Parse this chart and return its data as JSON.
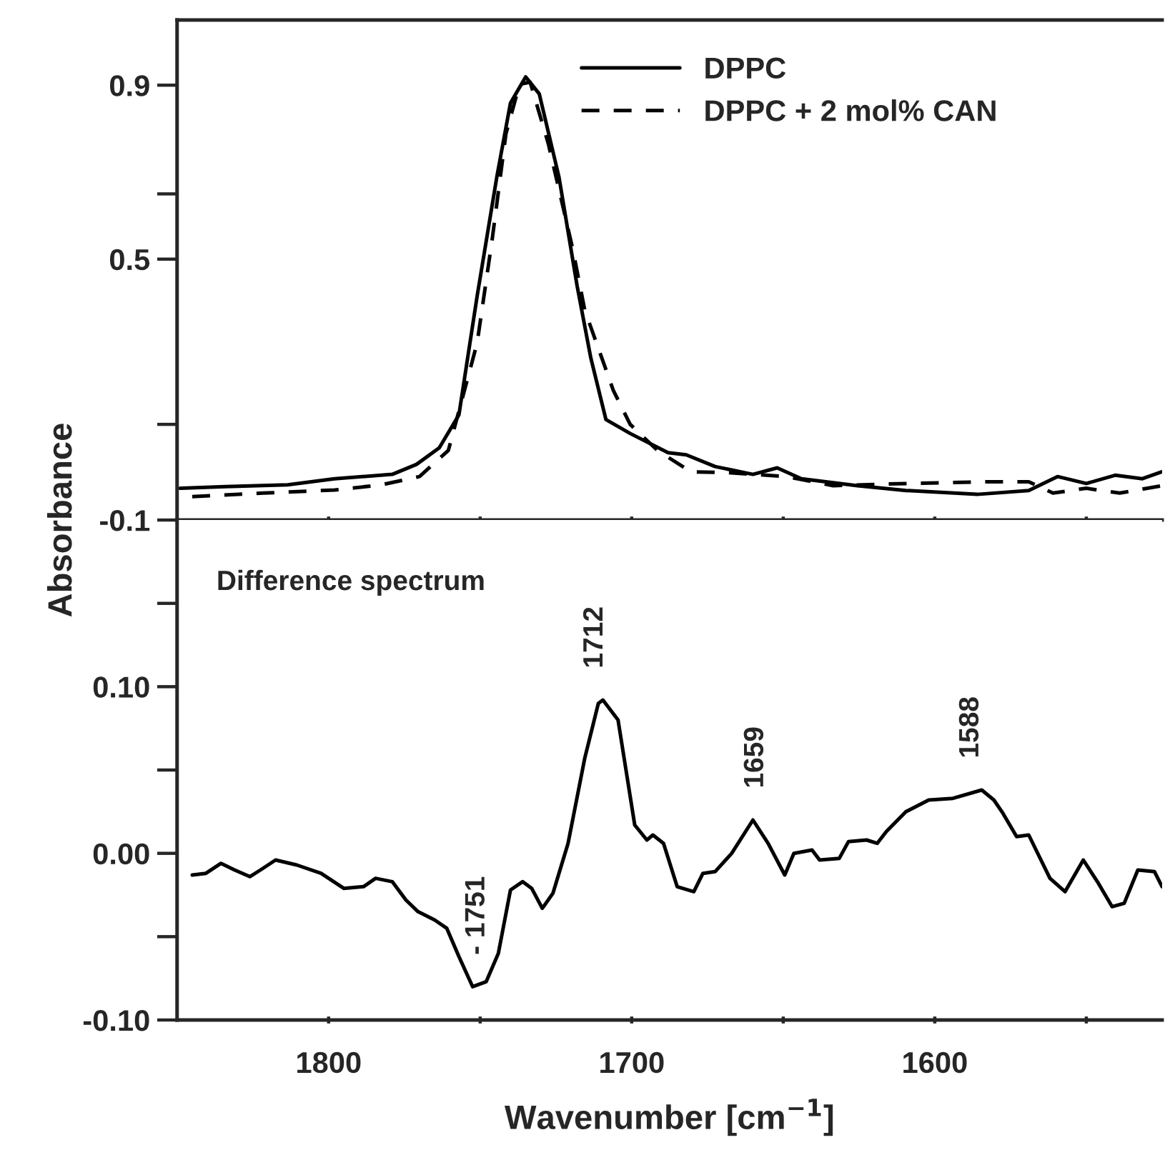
{
  "chart_data": [
    {
      "type": "line",
      "ylabel": "Absorbance",
      "xlim": [
        1850,
        1525
      ],
      "ylim": [
        -0.1,
        1.05
      ],
      "xticks": [
        {
          "value": 1800,
          "label": null
        },
        {
          "value": 1750,
          "label": null
        },
        {
          "value": 1700,
          "label": null
        },
        {
          "value": 1650,
          "label": null
        },
        {
          "value": 1600,
          "label": null
        },
        {
          "value": 1550,
          "label": null
        }
      ],
      "yticks": [
        -0.1,
        {
          "value": 0.12,
          "label": null
        },
        0.5,
        {
          "value": 0.65,
          "label": null
        },
        0.9
      ],
      "tick_labels": "y",
      "grid": false,
      "legend": "top right",
      "marker": "none",
      "series": [
        {
          "name": "DPPC",
          "color": "#000000",
          "line_style": "solid",
          "x": [
            1849,
            1834,
            1813.5,
            1798,
            1779,
            1771,
            1763.5,
            1757,
            1751,
            1744.5,
            1740,
            1735,
            1730.5,
            1724,
            1718,
            1713.5,
            1708.5,
            1700.5,
            1688,
            1682,
            1672.5,
            1660,
            1652,
            1644,
            1625.5,
            1609.5,
            1586,
            1569,
            1559.5,
            1550,
            1540.5,
            1531.5,
            1525
          ],
          "values": [
            -0.027,
            -0.023,
            -0.019,
            -0.005,
            0.005,
            0.028,
            0.066,
            0.142,
            0.415,
            0.689,
            0.859,
            0.919,
            0.88,
            0.689,
            0.438,
            0.273,
            0.131,
            0.099,
            0.055,
            0.05,
            0.023,
            0.005,
            0.02,
            -0.005,
            -0.021,
            -0.032,
            -0.041,
            -0.032,
            0.0,
            -0.016,
            0.003,
            -0.005,
            0.011
          ]
        },
        {
          "name": "DPPC + 2 mol% CAN",
          "color": "#000000",
          "line_style": "dashed",
          "x": [
            1845,
            1821.5,
            1798,
            1782.5,
            1770,
            1760.5,
            1751,
            1746,
            1741.5,
            1737,
            1733.5,
            1727.5,
            1719.5,
            1715.5,
            1706,
            1700.5,
            1691.5,
            1680.5,
            1668,
            1649,
            1633.5,
            1609.5,
            1583,
            1569,
            1561,
            1550,
            1539,
            1525
          ],
          "values": [
            -0.046,
            -0.038,
            -0.031,
            -0.019,
            0.0,
            0.06,
            0.307,
            0.547,
            0.788,
            0.902,
            0.907,
            0.765,
            0.525,
            0.383,
            0.197,
            0.12,
            0.06,
            0.011,
            0.009,
            0.0,
            -0.021,
            -0.016,
            -0.012,
            -0.012,
            -0.038,
            -0.027,
            -0.038,
            -0.021
          ]
        }
      ]
    },
    {
      "type": "line",
      "xlabel": "Wavenumber [cm$^{−1}$]",
      "xlim": [
        1850,
        1525
      ],
      "ylim": [
        -0.1,
        0.2
      ],
      "xticks": [
        1800,
        {
          "value": 1750,
          "label": null
        },
        1700,
        {
          "value": 1650,
          "label": null
        },
        1600,
        {
          "value": 1550,
          "label": null
        }
      ],
      "yticks": [
        "-0.10",
        {
          "value": -0.05,
          "label": null
        },
        {
          "value": 0.0,
          "label": "0.00"
        },
        {
          "value": 0.05,
          "label": null
        },
        {
          "value": 0.1,
          "label": "0.10"
        },
        {
          "value": 0.15,
          "label": null
        }
      ],
      "grid": false,
      "legend": false,
      "marker": "none",
      "annotations": [
        "Difference spectrum",
        {
          "text": "- 1751",
          "x": 1751,
          "y": -0.08
        },
        {
          "text": "1712",
          "x": 1712,
          "y": 0.092
        },
        {
          "text": "1659",
          "x": 1659,
          "y": 0.02
        },
        {
          "text": "1588",
          "x": 1588,
          "y": 0.038
        }
      ],
      "series": [
        {
          "color": "#000000",
          "line_style": "solid",
          "x": [
            1845,
            1840.5,
            1835.5,
            1831,
            1826,
            1822.5,
            1817.5,
            1810.5,
            1802.5,
            1795,
            1788.5,
            1784.5,
            1779,
            1774.5,
            1770.5,
            1765,
            1761,
            1757,
            1752.5,
            1748,
            1744,
            1740,
            1736,
            1733,
            1729.5,
            1726,
            1721,
            1715.5,
            1711,
            1709.5,
            1704.5,
            1699,
            1695,
            1693,
            1689.5,
            1685,
            1679.5,
            1676.5,
            1672.5,
            1667,
            1660,
            1655,
            1649.5,
            1646.5,
            1640.5,
            1638,
            1631.5,
            1628.5,
            1622.5,
            1619,
            1616,
            1609.5,
            1602,
            1594,
            1584.5,
            1580.5,
            1577.5,
            1573,
            1569,
            1562,
            1557,
            1551,
            1546,
            1541.5,
            1537.5,
            1533,
            1527.5,
            1525
          ],
          "values": [
            -0.013,
            -0.012,
            -0.006,
            -0.01,
            -0.014,
            -0.01,
            -0.004,
            -0.007,
            -0.012,
            -0.021,
            -0.02,
            -0.015,
            -0.017,
            -0.028,
            -0.035,
            -0.04,
            -0.045,
            -0.062,
            -0.08,
            -0.077,
            -0.06,
            -0.022,
            -0.017,
            -0.021,
            -0.033,
            -0.024,
            0.006,
            0.057,
            0.09,
            0.092,
            0.08,
            0.017,
            0.008,
            0.011,
            0.006,
            -0.02,
            -0.023,
            -0.012,
            -0.011,
            0.0,
            0.02,
            0.006,
            -0.013,
            0.0,
            0.002,
            -0.004,
            -0.003,
            0.007,
            0.008,
            0.006,
            0.013,
            0.025,
            0.032,
            0.033,
            0.038,
            0.032,
            0.024,
            0.01,
            0.011,
            -0.015,
            -0.023,
            -0.004,
            -0.018,
            -0.032,
            -0.03,
            -0.01,
            -0.011,
            -0.02
          ]
        }
      ]
    }
  ]
}
